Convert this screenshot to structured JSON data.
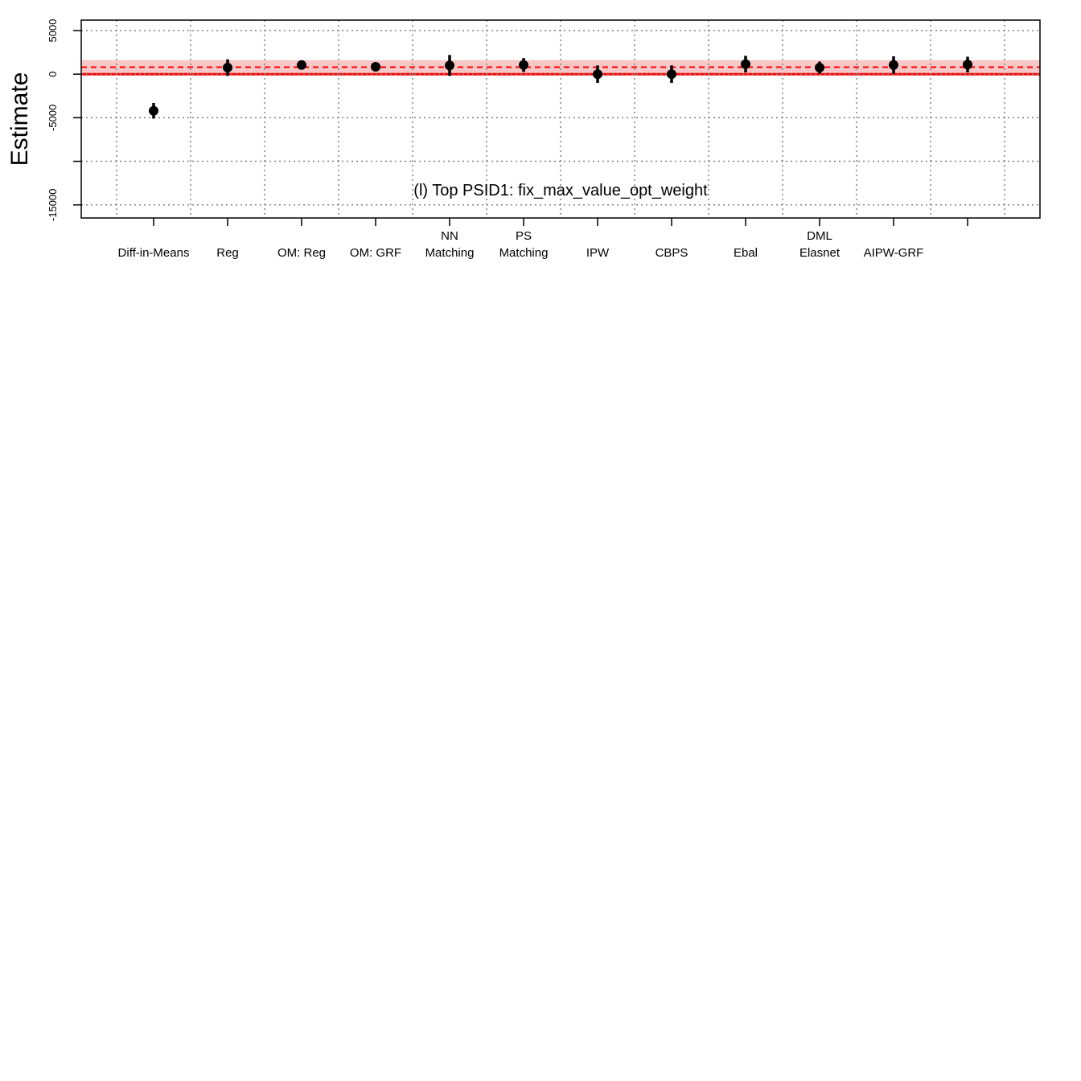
{
  "chart_data": {
    "type": "scatter",
    "title": "",
    "annotation": "(l) Top PSID1: fix_max_value_opt_weight",
    "xlabel": "",
    "ylabel": "Estimate",
    "ylim": [
      -16500,
      6200
    ],
    "yticks": [
      5000,
      0,
      -5000,
      -10000,
      -15000
    ],
    "ytick_labels": [
      "5000",
      "0",
      "-5000",
      "",
      "-15000"
    ],
    "grid": true,
    "categories": [
      [
        "Diff-in-Means"
      ],
      [
        "Reg"
      ],
      [
        "OM: Reg"
      ],
      [
        "OM: GRF"
      ],
      [
        "NN",
        "Matching"
      ],
      [
        "PS",
        "Matching"
      ],
      [
        "IPW"
      ],
      [
        "CBPS"
      ],
      [
        "Ebal"
      ],
      [
        "DML",
        "Elasnet"
      ],
      [
        "AIPW-GRF"
      ],
      [
        ""
      ]
    ],
    "estimates": [
      -4200,
      750,
      1050,
      850,
      1000,
      1050,
      0,
      0,
      1150,
      750,
      1050,
      1100
    ],
    "ci_low": [
      -5100,
      -200,
      600,
      450,
      -200,
      250,
      -1000,
      -1000,
      200,
      50,
      50,
      200
    ],
    "ci_high": [
      -3300,
      1700,
      1500,
      1250,
      2200,
      1850,
      1000,
      1000,
      2100,
      1450,
      2050,
      2000
    ],
    "benchmark": {
      "estimate": 800,
      "ci_low": 0,
      "ci_high": 1600,
      "zero_line": 0
    },
    "colors": {
      "points": "#000000",
      "benchmark_line": "#ff0000",
      "benchmark_band": "#f7c6c6",
      "grid": "#808080"
    }
  }
}
